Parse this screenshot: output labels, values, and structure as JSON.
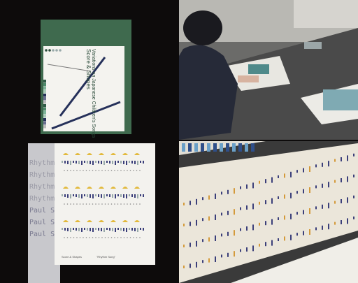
{
  "green_cover": {
    "title": "Score & Shapes",
    "subtitle": "Variations on Japanese Children's Songs"
  },
  "grey_cover": {
    "lines": [
      "Rhythm",
      "Rhythm",
      "Rhythm",
      "Rhythm",
      "Paul S",
      "Paul S",
      "Paul S"
    ]
  },
  "white_page": {
    "footer_left": "Score & Shapes",
    "footer_right": "\"Rhythm Song\""
  }
}
